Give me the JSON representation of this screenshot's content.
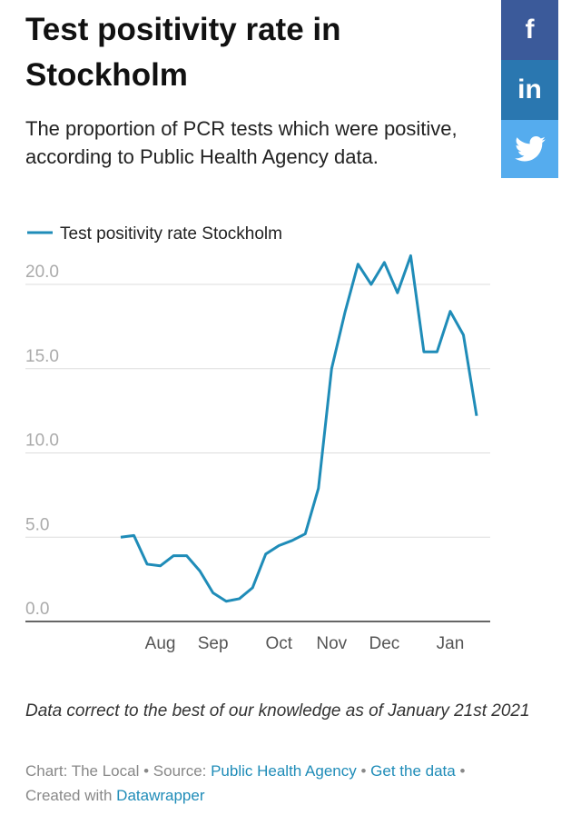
{
  "chart_data": {
    "type": "line",
    "title": "Test positivity rate in Stockholm",
    "subtitle": "The proportion of PCR tests which were positive, according to Public Health Agency data.",
    "categories": [
      null,
      null,
      null,
      "Aug",
      null,
      null,
      null,
      "Sep",
      null,
      null,
      null,
      null,
      "Oct",
      null,
      null,
      null,
      "Nov",
      null,
      null,
      null,
      "Dec",
      null,
      null,
      null,
      null,
      "Jan",
      null,
      null
    ],
    "series": [
      {
        "name": "Test positivity rate Stockholm",
        "color": "#1f8cb8",
        "values": [
          5.0,
          5.1,
          3.4,
          3.3,
          3.9,
          3.9,
          3.0,
          1.7,
          1.2,
          1.35,
          2.0,
          4.0,
          4.5,
          4.8,
          5.2,
          7.9,
          15.0,
          18.3,
          21.2,
          20.0,
          21.3,
          19.5,
          21.7,
          16.0,
          16.0,
          18.4,
          17.0,
          12.2
        ]
      }
    ],
    "ylim": [
      0,
      20
    ],
    "yticks": [
      {
        "value": 0,
        "label": "0.0"
      },
      {
        "value": 5,
        "label": "5.0"
      },
      {
        "value": 10,
        "label": "10.0"
      },
      {
        "value": 15,
        "label": "15.0"
      },
      {
        "value": 20,
        "label": "20.0"
      }
    ],
    "grid": true,
    "legend": "top-left",
    "note": "Data correct to the best of our knowledge as of January 21st 2021",
    "credits": [
      "Chart: The Local",
      "Source: ",
      "Public Health Agency",
      "Get the data",
      "Created with ",
      "Datawrapper"
    ]
  },
  "share": [
    "f",
    "in"
  ]
}
